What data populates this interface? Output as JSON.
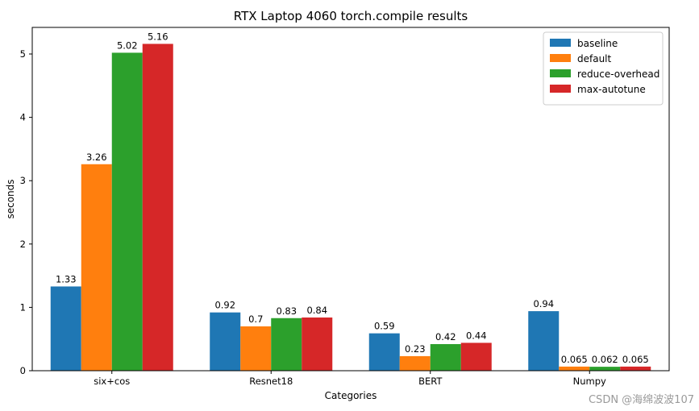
{
  "chart_data": {
    "type": "bar",
    "title": "RTX Laptop 4060 torch.compile results",
    "xlabel": "Categories",
    "ylabel": "seconds",
    "categories": [
      "six+cos",
      "Resnet18",
      "BERT",
      "Numpy"
    ],
    "series": [
      {
        "name": "baseline",
        "color": "#1f77b4",
        "values": [
          1.33,
          0.92,
          0.59,
          0.94
        ],
        "labels": [
          "1.33",
          "0.92",
          "0.59",
          "0.94"
        ]
      },
      {
        "name": "default",
        "color": "#ff7f0e",
        "values": [
          3.26,
          0.7,
          0.23,
          0.065
        ],
        "labels": [
          "3.26",
          "0.7",
          "0.23",
          "0.065"
        ]
      },
      {
        "name": "reduce-overhead",
        "color": "#2ca02c",
        "values": [
          5.02,
          0.83,
          0.42,
          0.062
        ],
        "labels": [
          "5.02",
          "0.83",
          "0.42",
          "0.062"
        ]
      },
      {
        "name": "max-autotune",
        "color": "#d62728",
        "values": [
          5.16,
          0.84,
          0.44,
          0.065
        ],
        "labels": [
          "5.16",
          "0.84",
          "0.44",
          "0.065"
        ]
      }
    ],
    "ylim": [
      0,
      5.42
    ],
    "yticks": [
      0,
      1,
      2,
      3,
      4,
      5
    ],
    "grid": false,
    "legend": "top-right"
  },
  "watermark": "CSDN @海绵波波107"
}
